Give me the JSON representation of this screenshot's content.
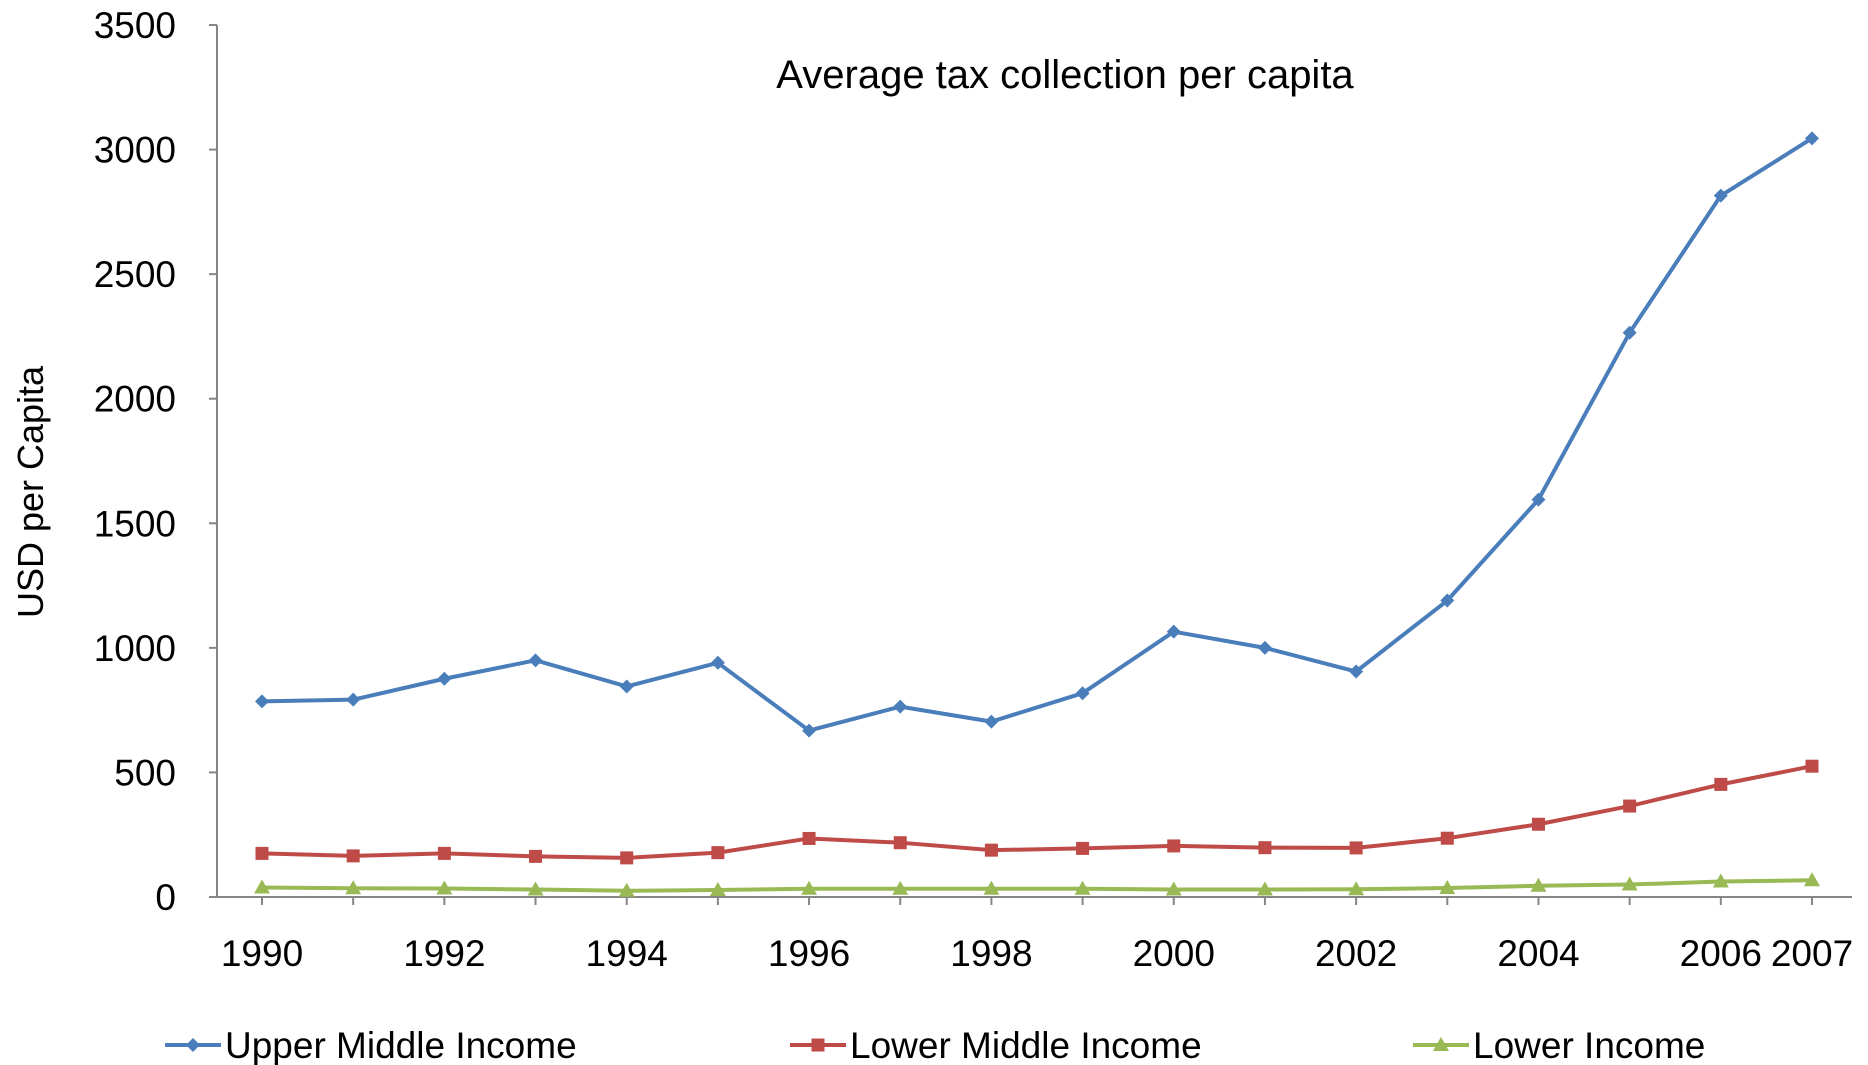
{
  "chart_data": {
    "type": "line",
    "title": "Average tax collection per capita",
    "xlabel": "",
    "ylabel": "USD per Capita",
    "x": [
      1990,
      1991,
      1992,
      1993,
      1994,
      1995,
      1996,
      1997,
      1998,
      1999,
      2000,
      2001,
      2002,
      2003,
      2004,
      2005,
      2006,
      2007
    ],
    "x_tick_labels": [
      "1990",
      "1992",
      "1994",
      "1996",
      "1998",
      "2000",
      "2002",
      "2004",
      "2006",
      "2007"
    ],
    "y_tick_labels": [
      "0",
      "500",
      "1000",
      "1500",
      "2000",
      "2500",
      "3000",
      "3500"
    ],
    "ylim": [
      0,
      3500
    ],
    "grid": false,
    "legend_position": "bottom",
    "series": [
      {
        "name": "Upper Middle Income",
        "color": "#4a7ebb",
        "marker": "diamond",
        "values": [
          785,
          792,
          876,
          950,
          845,
          940,
          668,
          764,
          704,
          818,
          1065,
          1000,
          905,
          1190,
          1595,
          2265,
          2815,
          3045
        ]
      },
      {
        "name": "Lower Middle Income",
        "color": "#be4b48",
        "marker": "square",
        "values": [
          175,
          165,
          175,
          163,
          157,
          178,
          235,
          218,
          188,
          195,
          205,
          198,
          197,
          236,
          292,
          365,
          452,
          525
        ]
      },
      {
        "name": "Lower Income",
        "color": "#98b954",
        "marker": "triangle",
        "values": [
          38,
          35,
          34,
          30,
          25,
          28,
          33,
          33,
          33,
          33,
          30,
          30,
          31,
          36,
          45,
          50,
          62,
          67
        ]
      }
    ]
  }
}
